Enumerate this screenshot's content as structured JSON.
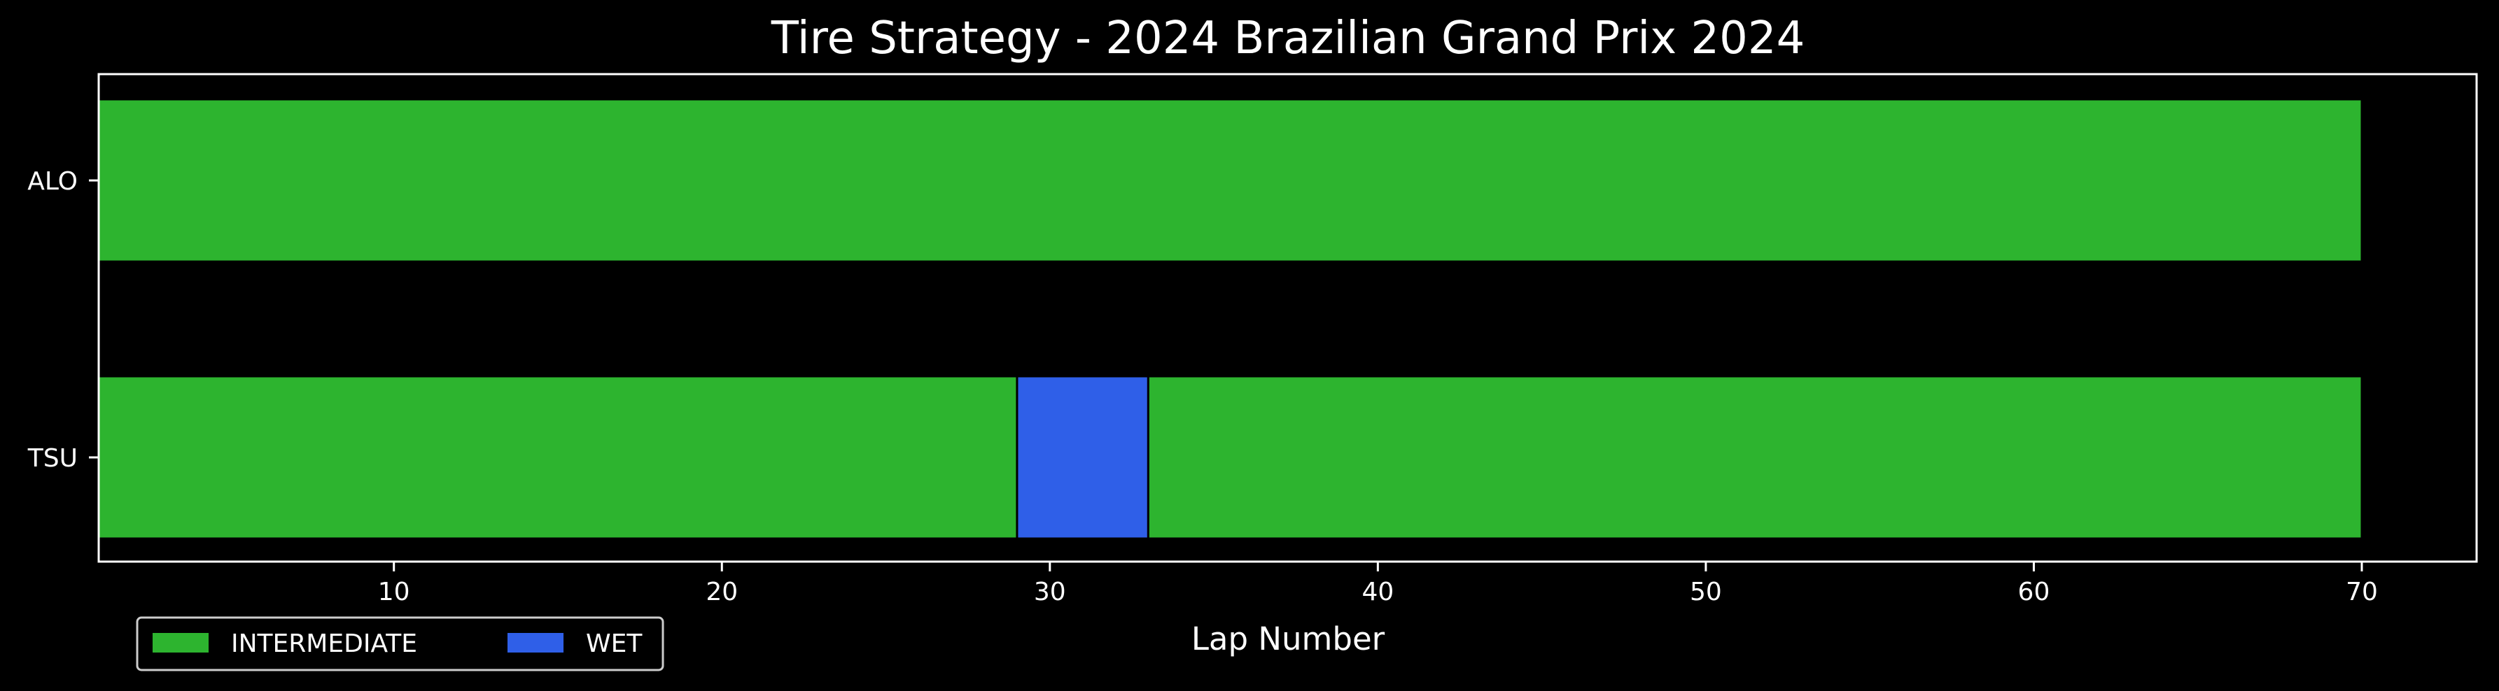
{
  "chart_data": {
    "type": "bar",
    "orientation": "horizontal-stacked",
    "title": "Tire Strategy - 2024 Brazilian Grand Prix 2024",
    "xlabel": "Lap Number",
    "ylabel": "",
    "xlim": [
      1,
      73.5
    ],
    "xticks": [
      10,
      20,
      30,
      40,
      50,
      60,
      70
    ],
    "categories": [
      "ALO",
      "TSU"
    ],
    "stints": [
      {
        "driver": "ALO",
        "compound": "INTERMEDIATE",
        "start": 1,
        "end": 70
      },
      {
        "driver": "TSU",
        "compound": "INTERMEDIATE",
        "start": 1,
        "end": 29
      },
      {
        "driver": "TSU",
        "compound": "WET",
        "start": 29,
        "end": 33
      },
      {
        "driver": "TSU",
        "compound": "INTERMEDIATE",
        "start": 33,
        "end": 70
      }
    ],
    "legend": {
      "placement": "bottom-left, outside",
      "entries": [
        {
          "label": "INTERMEDIATE",
          "color": "#2db42f"
        },
        {
          "label": "WET",
          "color": "#2f5fe8"
        }
      ]
    },
    "colors": {
      "INTERMEDIATE": "#2db42f",
      "WET": "#2f5fe8"
    },
    "grid": false
  }
}
